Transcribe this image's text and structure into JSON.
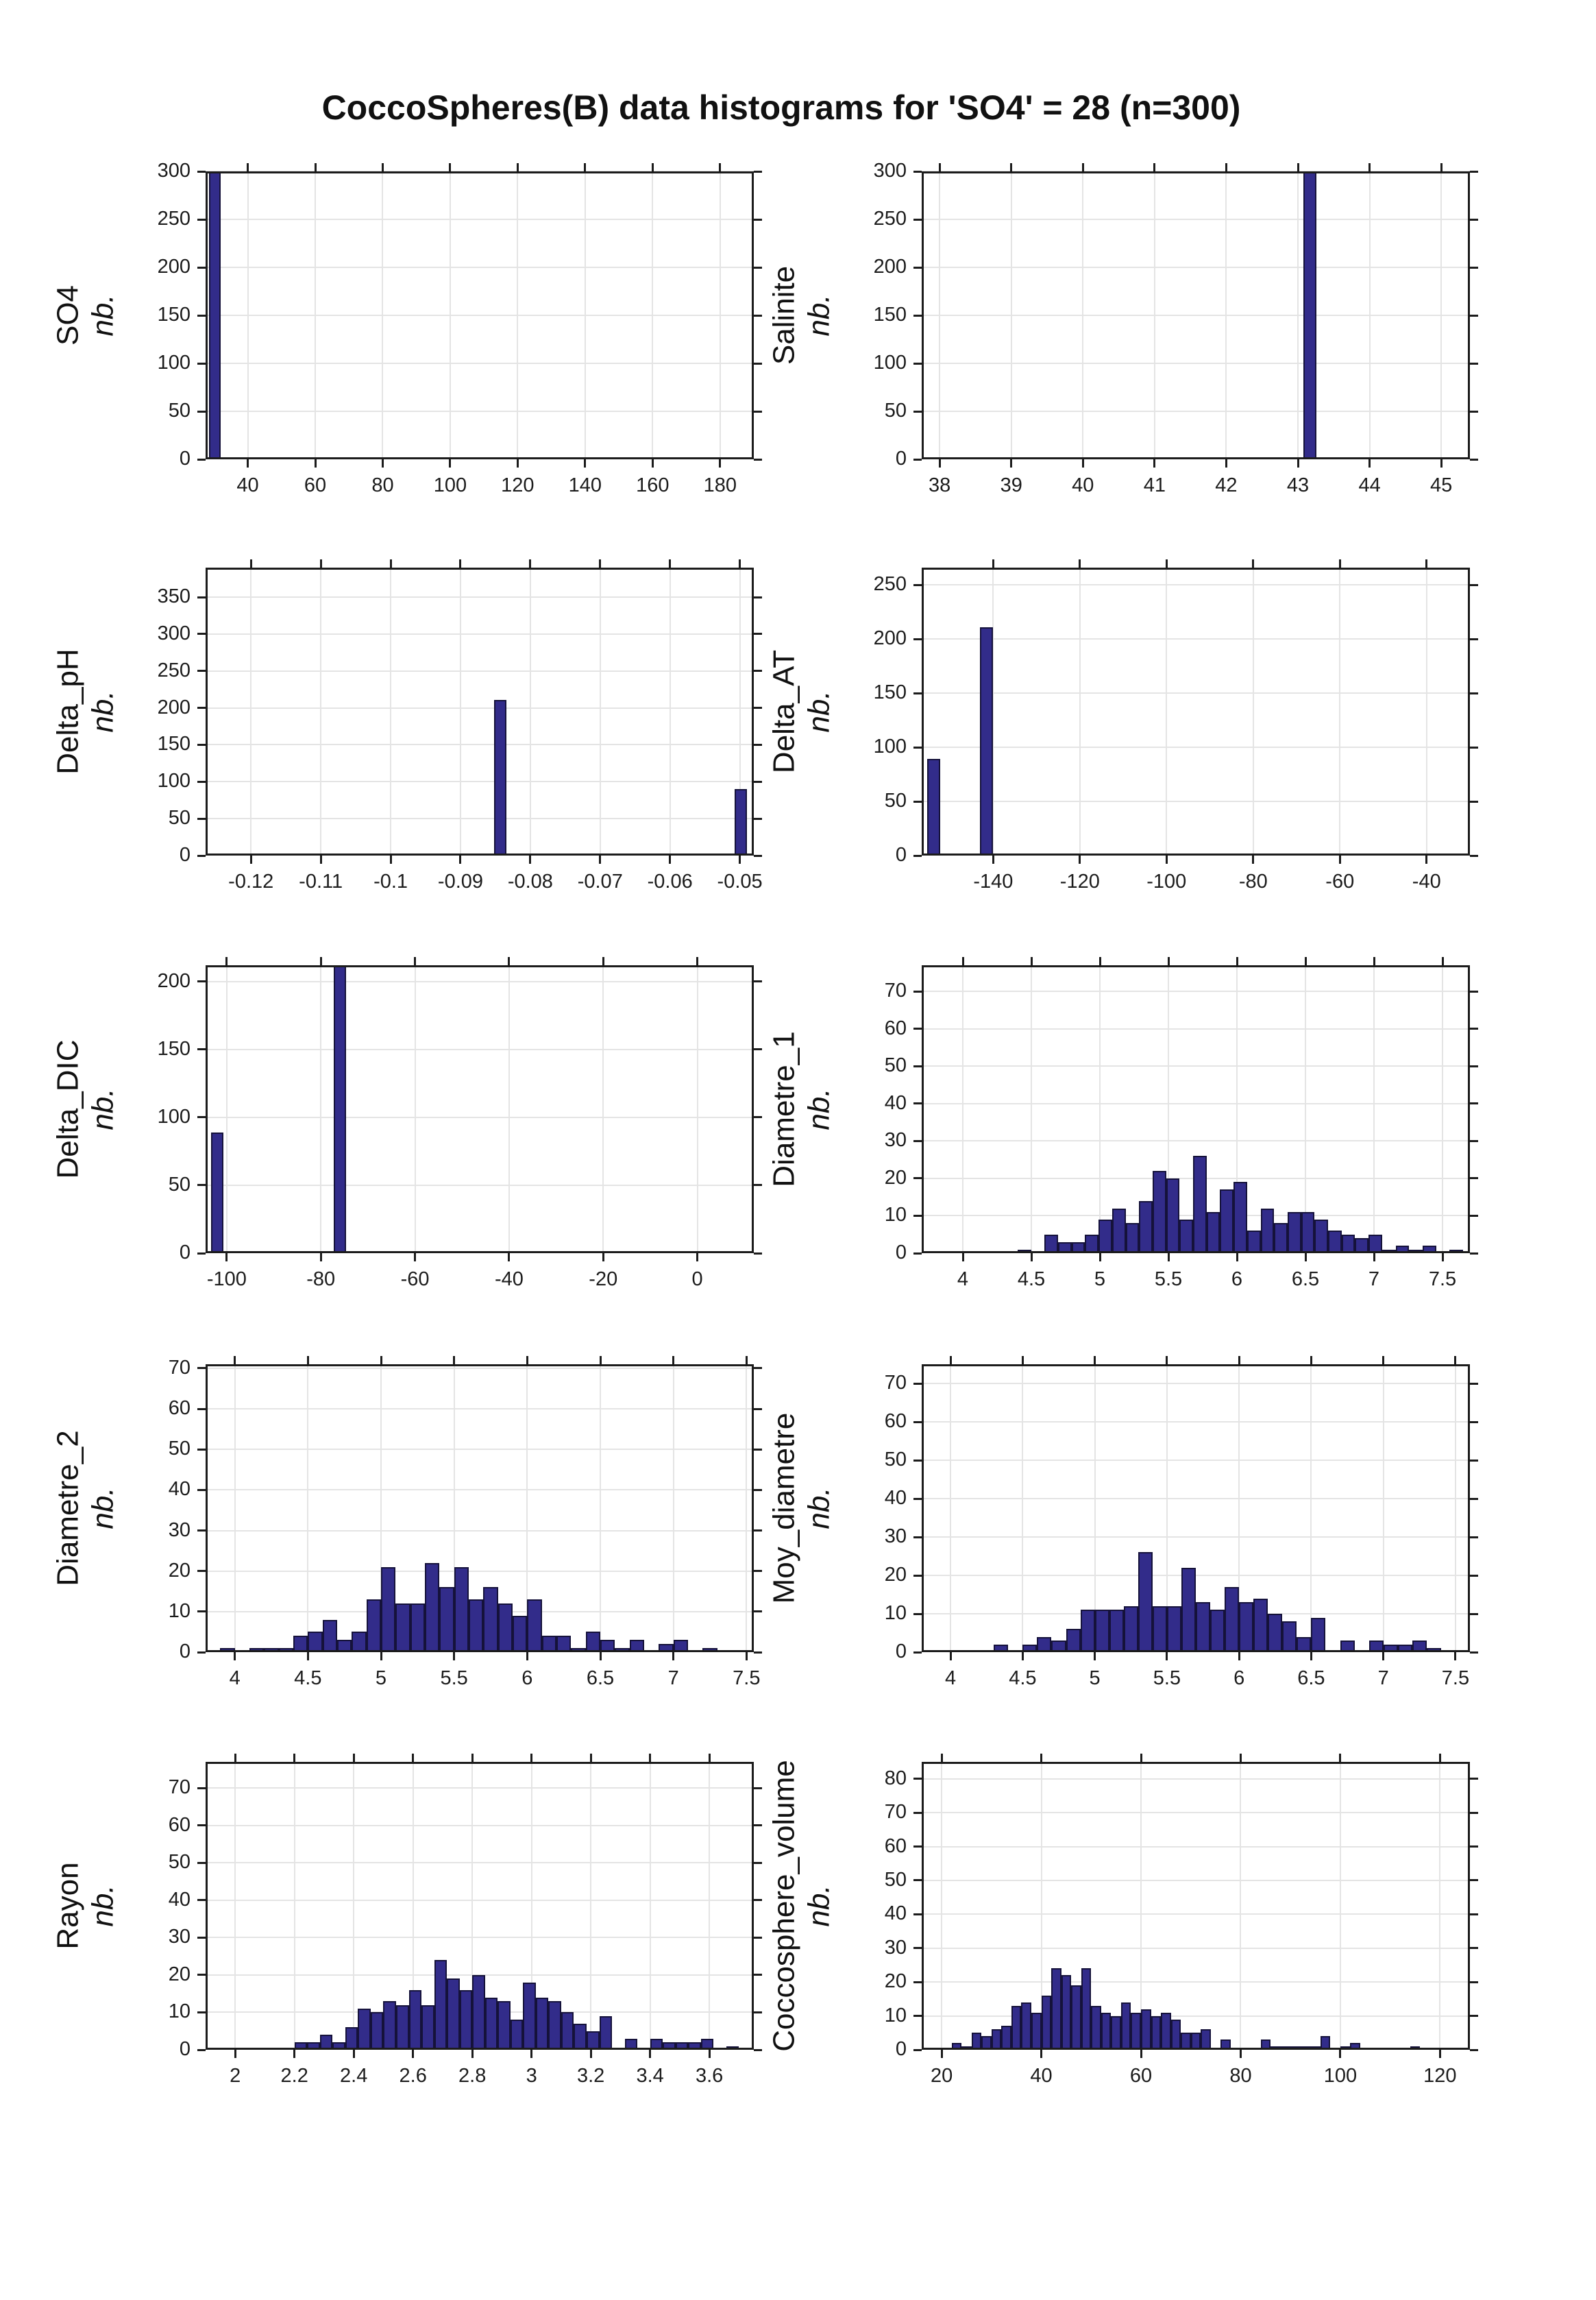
{
  "title": "CoccoSpheres(B) data histograms for 'SO4' = 28 (n=300)",
  "nb_label": "nb.",
  "colors": {
    "bar_fill": "#322c8a",
    "bar_edge": "#15123a",
    "grid": "#e4e4e4",
    "axis": "#1c1c1c",
    "background": "#ffffff"
  },
  "chart_data": [
    {
      "type": "histogram",
      "name": "SO4",
      "ylabel": "SO4",
      "xlim": [
        27.5,
        190
      ],
      "ylim": [
        0,
        300
      ],
      "xticks": [
        40,
        60,
        80,
        100,
        120,
        140,
        160,
        180
      ],
      "xtick_labels": [
        "40",
        "60",
        "80",
        "100",
        "120",
        "140",
        "160",
        "180"
      ],
      "yticks": [
        0,
        50,
        100,
        150,
        200,
        250,
        300
      ],
      "bars": [
        [
          28.6,
          3.4,
          300
        ]
      ]
    },
    {
      "type": "histogram",
      "name": "Salinite",
      "ylabel": "Salinite",
      "xlim": [
        37.75,
        45.4
      ],
      "ylim": [
        0,
        300
      ],
      "xticks": [
        38,
        39,
        40,
        41,
        42,
        43,
        44,
        45
      ],
      "xtick_labels": [
        "38",
        "39",
        "40",
        "41",
        "42",
        "43",
        "44",
        "45"
      ],
      "yticks": [
        0,
        50,
        100,
        150,
        200,
        250,
        300
      ],
      "bars": [
        [
          43.08,
          0.18,
          300
        ]
      ]
    },
    {
      "type": "histogram",
      "name": "Delta_pH",
      "ylabel": "Delta_pH",
      "xlim": [
        -0.1265,
        -0.048
      ],
      "ylim": [
        0,
        390
      ],
      "xticks": [
        -0.12,
        -0.11,
        -0.1,
        -0.09,
        -0.08,
        -0.07,
        -0.06,
        -0.05
      ],
      "xtick_labels": [
        "-0.12",
        "-0.11",
        "-0.1",
        "-0.09",
        "-0.08",
        "-0.07",
        "-0.06",
        "-0.05"
      ],
      "yticks": [
        0,
        50,
        100,
        150,
        200,
        250,
        300,
        350
      ],
      "bars": [
        [
          -0.0852,
          0.0018,
          211
        ],
        [
          -0.0507,
          0.0017,
          90
        ]
      ]
    },
    {
      "type": "histogram",
      "name": "Delta_AT",
      "ylabel": "Delta_AT",
      "xlim": [
        -156.5,
        -30
      ],
      "ylim": [
        0,
        266
      ],
      "xticks": [
        -140,
        -120,
        -100,
        -80,
        -60,
        -40
      ],
      "xtick_labels": [
        "-140",
        "-120",
        "-100",
        "-80",
        "-60",
        "-40"
      ],
      "yticks": [
        0,
        50,
        100,
        150,
        200,
        250
      ],
      "bars": [
        [
          -155.3,
          3.0,
          89
        ],
        [
          -143.1,
          3.0,
          211
        ]
      ]
    },
    {
      "type": "histogram",
      "name": "Delta_DIC",
      "ylabel": "Delta_DIC",
      "xlim": [
        -104.5,
        12
      ],
      "ylim": [
        0,
        212
      ],
      "xticks": [
        -100,
        -80,
        -60,
        -40,
        -20,
        0
      ],
      "xtick_labels": [
        "-100",
        "-80",
        "-60",
        "-40",
        "-20",
        "0"
      ],
      "yticks": [
        0,
        50,
        100,
        150,
        200
      ],
      "bars": [
        [
          -103.3,
          2.6,
          89
        ],
        [
          -77.3,
          2.6,
          212
        ]
      ]
    },
    {
      "type": "histogram",
      "name": "Diametre_1",
      "ylabel": "Diametre_1",
      "xlim": [
        3.7,
        7.7
      ],
      "ylim": [
        0,
        77
      ],
      "xticks": [
        4,
        4.5,
        5,
        5.5,
        6,
        6.5,
        7,
        7.5
      ],
      "xtick_labels": [
        "4",
        "4.5",
        "5",
        "5.5",
        "6",
        "6.5",
        "7",
        "7.5"
      ],
      "yticks": [
        0,
        10,
        20,
        30,
        40,
        50,
        60,
        70
      ],
      "hist": {
        "x_start": 4.4,
        "x_end": 7.65,
        "values": [
          1,
          0,
          5,
          3,
          3,
          5,
          9,
          12,
          8,
          14,
          22,
          20,
          9,
          26,
          11,
          17,
          19,
          6,
          12,
          8,
          11,
          11,
          9,
          6,
          5,
          4,
          5,
          1,
          2,
          1,
          2,
          0,
          1
        ]
      }
    },
    {
      "type": "histogram",
      "name": "Diametre_2",
      "ylabel": "Diametre_2",
      "xlim": [
        3.8,
        7.55
      ],
      "ylim": [
        0,
        71
      ],
      "xticks": [
        4,
        4.5,
        5,
        5.5,
        6,
        6.5,
        7,
        7.5
      ],
      "xtick_labels": [
        "4",
        "4.5",
        "5",
        "5.5",
        "6",
        "6.5",
        "7",
        "7.5"
      ],
      "yticks": [
        0,
        10,
        20,
        30,
        40,
        50,
        60,
        70
      ],
      "hist": {
        "x_start": 3.9,
        "x_end": 7.3,
        "values": [
          1,
          0,
          1,
          1,
          1,
          4,
          5,
          8,
          3,
          5,
          13,
          21,
          12,
          12,
          22,
          16,
          21,
          13,
          16,
          12,
          9,
          13,
          4,
          4,
          1,
          5,
          3,
          1,
          3,
          0,
          2,
          3,
          0,
          1
        ]
      }
    },
    {
      "type": "histogram",
      "name": "Moy_diametre",
      "ylabel": "Moy_diametre",
      "xlim": [
        3.8,
        7.6
      ],
      "ylim": [
        0,
        75
      ],
      "xticks": [
        4,
        4.5,
        5,
        5.5,
        6,
        6.5,
        7,
        7.5
      ],
      "xtick_labels": [
        "4",
        "4.5",
        "5",
        "5.5",
        "6",
        "6.5",
        "7",
        "7.5"
      ],
      "yticks": [
        0,
        10,
        20,
        30,
        40,
        50,
        60,
        70
      ],
      "hist": {
        "x_start": 4.3,
        "x_end": 7.4,
        "values": [
          2,
          0,
          2,
          4,
          3,
          6,
          11,
          11,
          11,
          12,
          26,
          12,
          12,
          22,
          13,
          11,
          17,
          13,
          14,
          10,
          8,
          4,
          9,
          0,
          3,
          0,
          3,
          2,
          2,
          3,
          1
        ]
      }
    },
    {
      "type": "histogram",
      "name": "Rayon",
      "ylabel": "Rayon",
      "xlim": [
        1.9,
        3.75
      ],
      "ylim": [
        0,
        77
      ],
      "xticks": [
        2,
        2.2,
        2.4,
        2.6,
        2.8,
        3,
        3.2,
        3.4,
        3.6
      ],
      "xtick_labels": [
        "2",
        "2.2",
        "2.4",
        "2.6",
        "2.8",
        "3",
        "3.2",
        "3.4",
        "3.6"
      ],
      "yticks": [
        0,
        10,
        20,
        30,
        40,
        50,
        60,
        70
      ],
      "hist": {
        "x_start": 2.2,
        "x_end": 3.7,
        "values": [
          2,
          2,
          4,
          2,
          6,
          11,
          10,
          13,
          12,
          16,
          12,
          24,
          19,
          16,
          20,
          14,
          13,
          8,
          18,
          14,
          13,
          10,
          7,
          5,
          9,
          0,
          3,
          0,
          3,
          2,
          2,
          2,
          3,
          0,
          1
        ]
      }
    },
    {
      "type": "histogram",
      "name": "Coccosphere_volume",
      "ylabel": "Coccosphere_volume",
      "xlim": [
        16,
        126
      ],
      "ylim": [
        0,
        85
      ],
      "xticks": [
        20,
        40,
        60,
        80,
        100,
        120
      ],
      "xtick_labels": [
        "20",
        "40",
        "60",
        "80",
        "100",
        "120"
      ],
      "yticks": [
        0,
        10,
        20,
        30,
        40,
        50,
        60,
        70,
        80
      ],
      "hist": {
        "x_start": 22,
        "x_end": 116,
        "values": [
          2,
          1,
          5,
          4,
          6,
          7,
          13,
          14,
          11,
          16,
          24,
          22,
          19,
          24,
          13,
          11,
          10,
          14,
          11,
          12,
          10,
          11,
          9,
          5,
          5,
          6,
          0,
          3,
          0,
          0,
          0,
          3,
          1,
          1,
          1,
          1,
          1,
          4,
          0,
          1,
          2,
          0,
          0,
          0,
          0,
          0,
          1
        ]
      }
    }
  ]
}
